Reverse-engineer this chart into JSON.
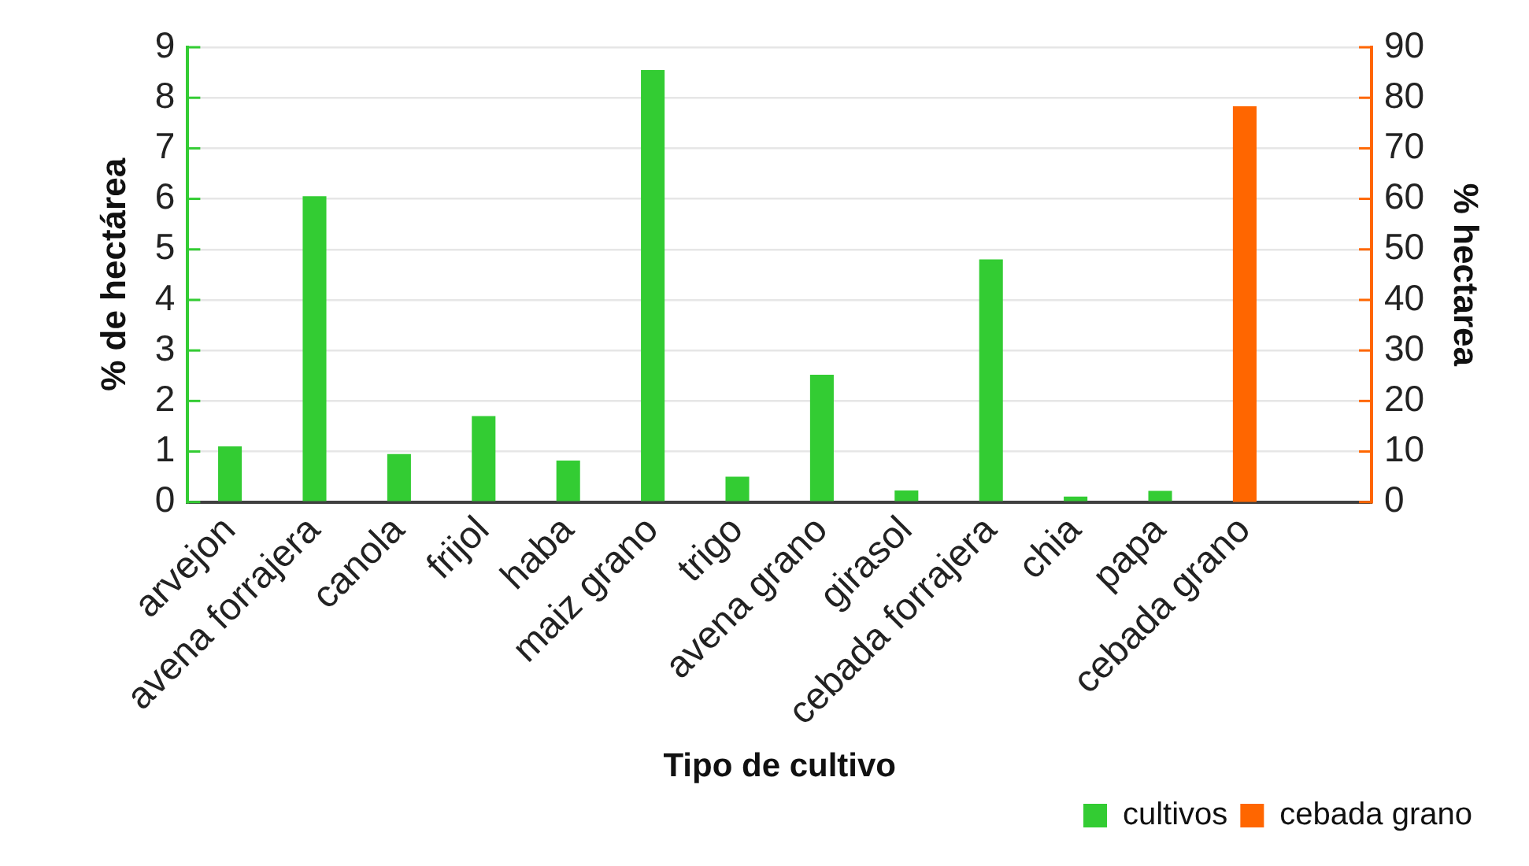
{
  "chart_data": {
    "type": "bar",
    "xlabel": "Tipo de cultivo",
    "ylabel": "% de hectárea",
    "y2label": "% hectarea",
    "categories": [
      "arvejon",
      "avena forrajera",
      "canola",
      "frijol",
      "haba",
      "maiz grano",
      "trigo",
      "avena grano",
      "girasol",
      "cebada forrajera",
      "chia",
      "papa",
      "cebada grano",
      null
    ],
    "series": [
      {
        "name": "cultivos",
        "color": "#33cc33",
        "values": [
          1.1,
          6.05,
          0.95,
          1.7,
          0.82,
          8.55,
          0.5,
          2.52,
          0.23,
          4.8,
          0.11,
          0.22,
          null,
          null
        ]
      },
      {
        "name": "cebada grano",
        "color": "#ff6600",
        "axis": "y2",
        "values": [
          null,
          null,
          null,
          null,
          null,
          null,
          null,
          null,
          null,
          null,
          null,
          null,
          78.3,
          null
        ]
      }
    ],
    "ylim": [
      0,
      9
    ],
    "yticks": [
      0,
      1,
      2,
      3,
      4,
      5,
      6,
      7,
      8,
      9
    ],
    "y2lim": [
      0,
      90
    ],
    "y2ticks": [
      0,
      10,
      20,
      30,
      40,
      50,
      60,
      70,
      80,
      90
    ],
    "grid": "y",
    "legend": "bottom right"
  }
}
